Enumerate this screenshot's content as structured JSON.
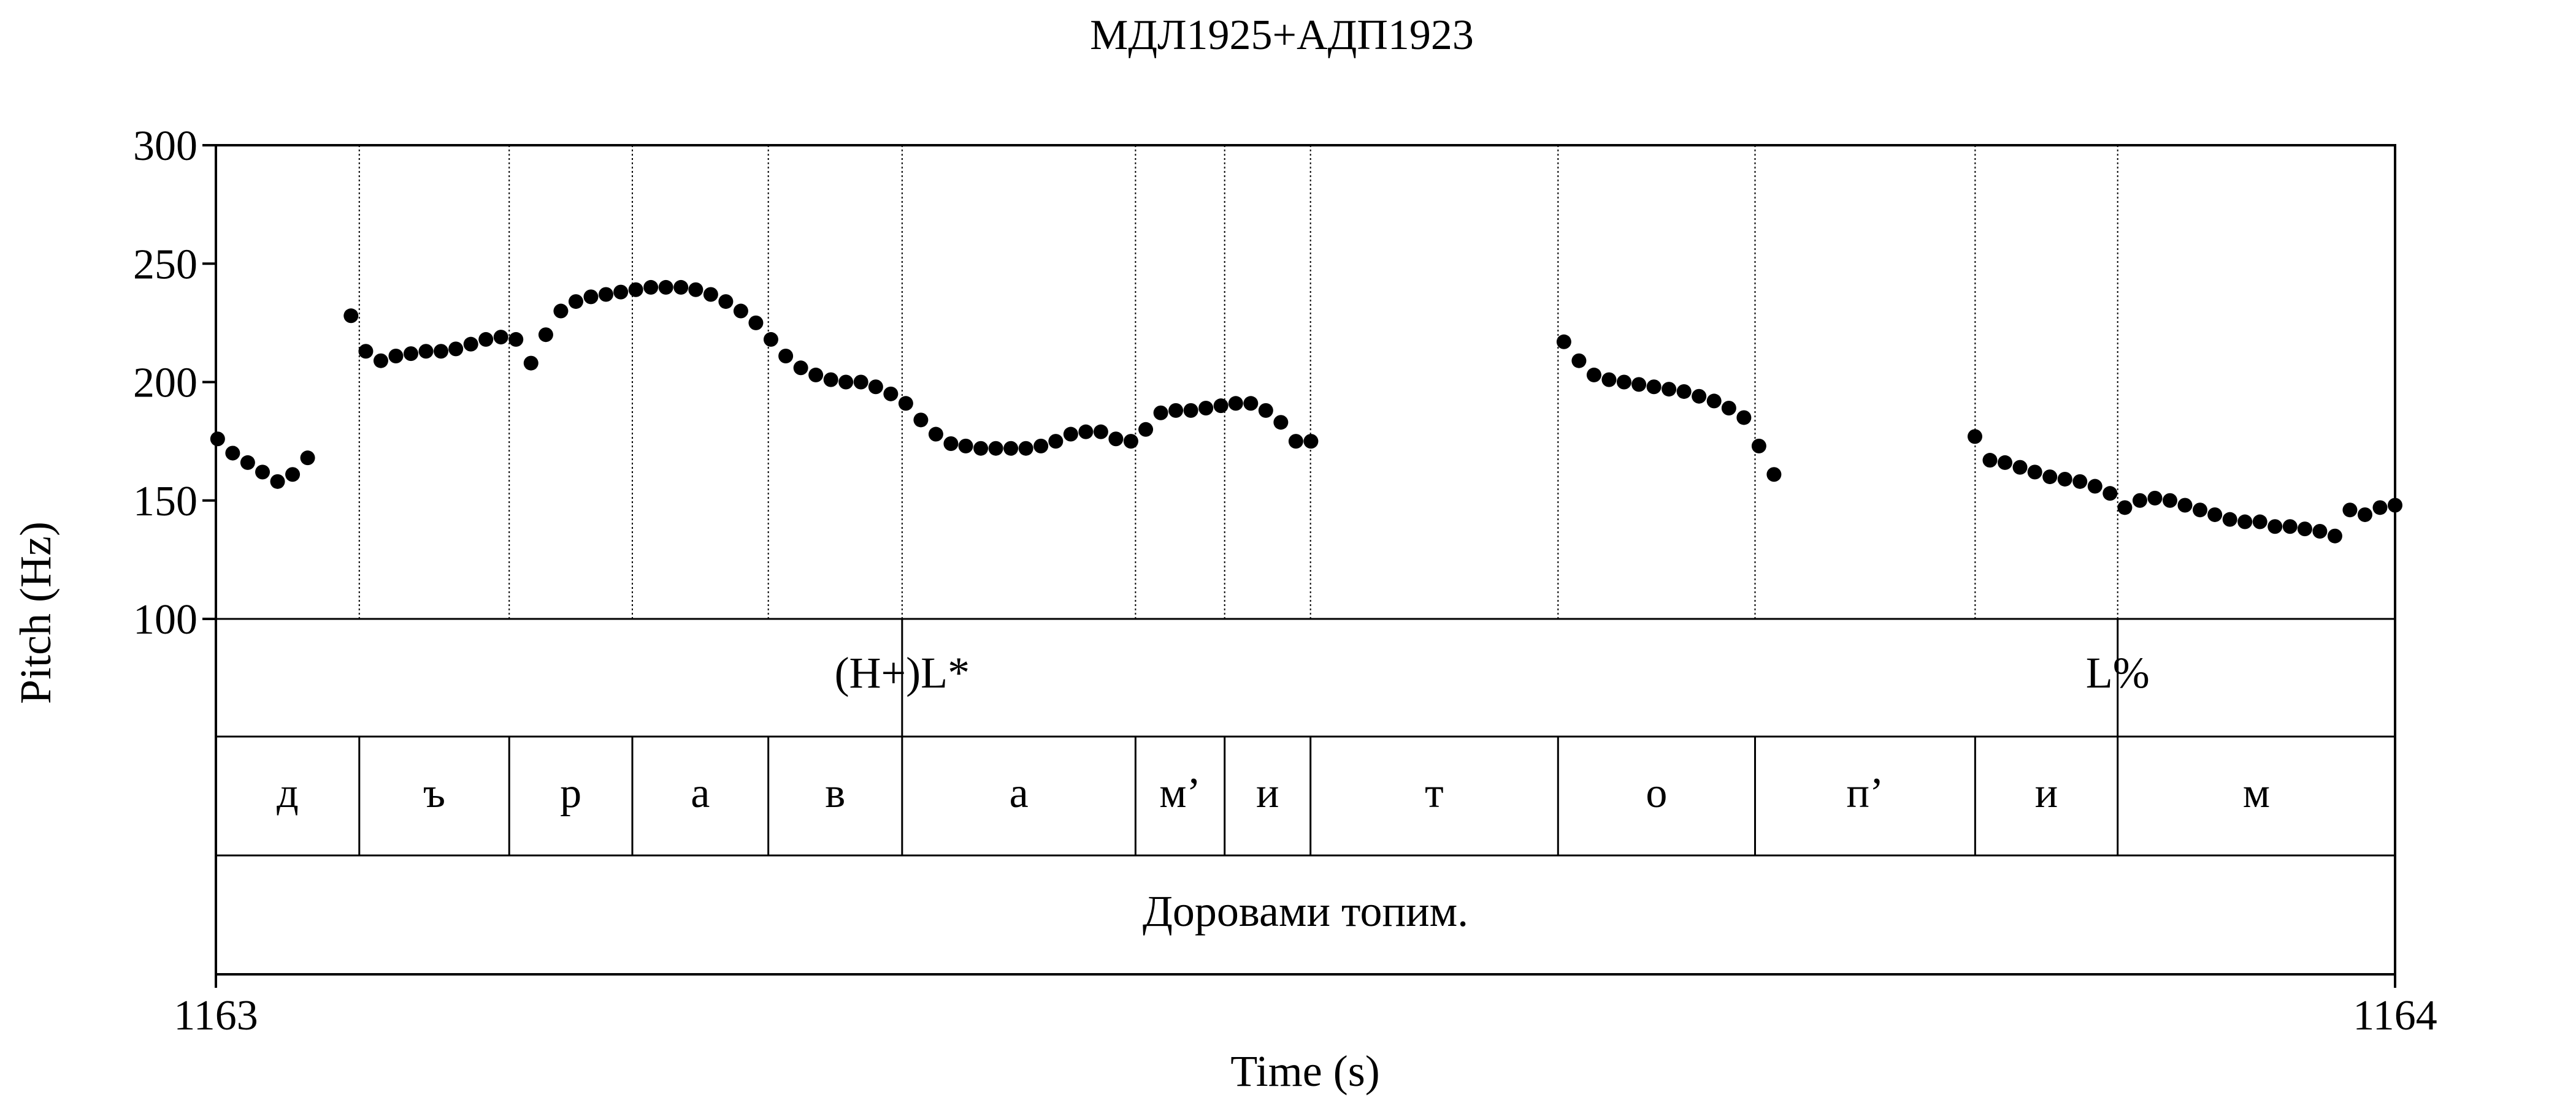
{
  "chart_data": {
    "type": "scatter",
    "title": "МДЛ1925+АДП1923",
    "xlabel": "Time (s)",
    "ylabel": "Pitch (Hz)",
    "xlim": [
      1163,
      1164
    ],
    "ylim": [
      100,
      300
    ],
    "yticks": [
      "100",
      "150",
      "200",
      "250",
      "300"
    ],
    "xticks": [
      "1163",
      "1164"
    ],
    "grid": false,
    "boundaries": [
      1163.0658,
      1163.1346,
      1163.1911,
      1163.2535,
      1163.3149,
      1163.422,
      1163.4629,
      1163.5023,
      1163.6159,
      1163.7063,
      1163.8073,
      1163.8727
    ],
    "tones": [
      {
        "label": "(H+)L*",
        "time": 1163.3149
      },
      {
        "label": "L%",
        "time": 1163.8727
      }
    ],
    "segments": [
      {
        "label": "д",
        "start": 1163.0,
        "end": 1163.0658
      },
      {
        "label": "ъ",
        "start": 1163.0658,
        "end": 1163.1346
      },
      {
        "label": "р",
        "start": 1163.1346,
        "end": 1163.1911
      },
      {
        "label": "а",
        "start": 1163.1911,
        "end": 1163.2535
      },
      {
        "label": "в",
        "start": 1163.2535,
        "end": 1163.3149
      },
      {
        "label": "а",
        "start": 1163.3149,
        "end": 1163.422
      },
      {
        "label": "м’",
        "start": 1163.422,
        "end": 1163.4629
      },
      {
        "label": "и",
        "start": 1163.4629,
        "end": 1163.5023
      },
      {
        "label": "т",
        "start": 1163.5023,
        "end": 1163.6159
      },
      {
        "label": "о",
        "start": 1163.6159,
        "end": 1163.7063
      },
      {
        "label": "п’",
        "start": 1163.7063,
        "end": 1163.8073
      },
      {
        "label": "и",
        "start": 1163.8073,
        "end": 1163.8727
      },
      {
        "label": "м",
        "start": 1163.8727,
        "end": 1164.0
      }
    ],
    "utterance": "Доровами топим.",
    "series": [
      {
        "x": [
          1163.0008,
          1163.0077,
          1163.0146,
          1163.0214,
          1163.0283,
          1163.0352,
          1163.0421,
          1163.062,
          1163.0688,
          1163.0757,
          1163.0826,
          1163.0895,
          1163.0964,
          1163.1033,
          1163.1101,
          1163.117,
          1163.1239,
          1163.1308,
          1163.1377,
          1163.1446,
          1163.1514,
          1163.1583,
          1163.1652,
          1163.1721,
          1163.179,
          1163.1858,
          1163.1927,
          1163.1996,
          1163.2065,
          1163.2134,
          1163.2202,
          1163.2271,
          1163.234,
          1163.2409,
          1163.2478,
          1163.2547,
          1163.2615,
          1163.2684,
          1163.2753,
          1163.2822,
          1163.2891,
          1163.296,
          1163.3028,
          1163.3097,
          1163.3166,
          1163.3235,
          1163.3304,
          1163.3373,
          1163.3441,
          1163.351,
          1163.3579,
          1163.3648,
          1163.3717,
          1163.3786,
          1163.3854,
          1163.3923,
          1163.3992,
          1163.4061,
          1163.413,
          1163.4199,
          1163.4267,
          1163.4336,
          1163.4405,
          1163.4474,
          1163.4543,
          1163.4612,
          1163.468,
          1163.4749,
          1163.4818,
          1163.4887,
          1163.4956,
          1163.5025,
          1163.6186,
          1163.6255,
          1163.6324,
          1163.6393,
          1163.6462,
          1163.653,
          1163.6599,
          1163.6668,
          1163.6737,
          1163.6806,
          1163.6875,
          1163.6943,
          1163.7012,
          1163.7081,
          1163.715,
          1163.8072,
          1163.8141,
          1163.821,
          1163.8279,
          1163.8347,
          1163.8416,
          1163.8485,
          1163.8554,
          1163.8623,
          1163.8692,
          1163.876,
          1163.8829,
          1163.8898,
          1163.8967,
          1163.9036,
          1163.9105,
          1163.9173,
          1163.9242,
          1163.9311,
          1163.938,
          1163.9449,
          1163.9518,
          1163.9586,
          1163.9655,
          1163.9724,
          1163.9793,
          1163.9862,
          1163.9931,
          1164.0
        ],
        "y": [
          176,
          170,
          166,
          162,
          158,
          161,
          168,
          228,
          213,
          209,
          211,
          212,
          213,
          213,
          214,
          216,
          218,
          219,
          218,
          208,
          220,
          230,
          234,
          236,
          237,
          238,
          239,
          240,
          240,
          240,
          239,
          237,
          234,
          230,
          225,
          218,
          211,
          206,
          203,
          201,
          200,
          200,
          198,
          195,
          191,
          184,
          178,
          174,
          173,
          172,
          172,
          172,
          172,
          173,
          175,
          178,
          179,
          179,
          176,
          175,
          180,
          187,
          188,
          188,
          189,
          190,
          191,
          191,
          188,
          183,
          175,
          175,
          217,
          209,
          203,
          201,
          200,
          199,
          198,
          197,
          196,
          194,
          192,
          189,
          185,
          173,
          161,
          177,
          167,
          166,
          164,
          162,
          160,
          159,
          158,
          156,
          153,
          147,
          150,
          151,
          150,
          148,
          146,
          144,
          142,
          141,
          141,
          139,
          139,
          138,
          137,
          135,
          146,
          144,
          147,
          148
        ]
      }
    ]
  }
}
